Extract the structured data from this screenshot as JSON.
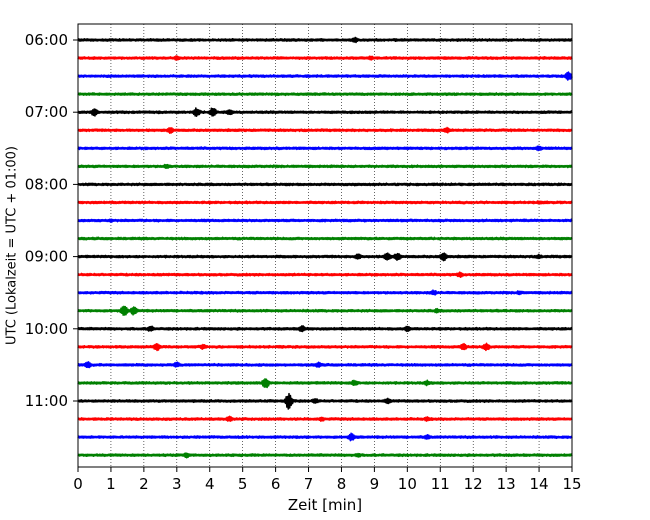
{
  "chart_data": {
    "type": "line",
    "title": "",
    "xlabel": "Zeit  [min]",
    "ylabel": "UTC (Lokalzeit = UTC + 01:00)",
    "xlim": [
      0,
      15
    ],
    "x_ticks": [
      0,
      1,
      2,
      3,
      4,
      5,
      6,
      7,
      8,
      9,
      10,
      11,
      12,
      13,
      14,
      15
    ],
    "x_tick_labels": [
      "0",
      "1",
      "2",
      "3",
      "4",
      "5",
      "6",
      "7",
      "8",
      "9",
      "10",
      "11",
      "12",
      "13",
      "14",
      "15"
    ],
    "y_tick_labels": [
      "06:00",
      "07:00",
      "08:00",
      "09:00",
      "10:00",
      "11:00"
    ],
    "grid": "vertical dotted",
    "trace_colors": [
      "#000000",
      "#ff0000",
      "#0000ff",
      "#008000"
    ],
    "traces": [
      {
        "start": "06:00",
        "color": "#000000",
        "events": [
          {
            "t": 8.4,
            "amp": 0.35
          }
        ]
      },
      {
        "start": "06:15",
        "color": "#ff0000",
        "events": [
          {
            "t": 3.0,
            "amp": 0.25
          },
          {
            "t": 8.9,
            "amp": 0.25
          }
        ]
      },
      {
        "start": "06:30",
        "color": "#0000ff",
        "events": [
          {
            "t": 14.9,
            "amp": 0.5
          }
        ]
      },
      {
        "start": "06:45",
        "color": "#008000",
        "events": []
      },
      {
        "start": "07:00",
        "color": "#000000",
        "events": [
          {
            "t": 0.5,
            "amp": 0.45
          },
          {
            "t": 3.6,
            "amp": 0.5
          },
          {
            "t": 4.1,
            "amp": 0.55
          },
          {
            "t": 4.6,
            "amp": 0.35
          }
        ]
      },
      {
        "start": "07:15",
        "color": "#ff0000",
        "events": [
          {
            "t": 2.8,
            "amp": 0.35
          },
          {
            "t": 11.2,
            "amp": 0.3
          }
        ]
      },
      {
        "start": "07:30",
        "color": "#0000ff",
        "events": [
          {
            "t": 14.0,
            "amp": 0.3
          }
        ]
      },
      {
        "start": "07:45",
        "color": "#008000",
        "events": [
          {
            "t": 2.7,
            "amp": 0.3
          }
        ]
      },
      {
        "start": "08:00",
        "color": "#000000",
        "events": []
      },
      {
        "start": "08:15",
        "color": "#ff0000",
        "events": [
          {
            "t": 14.0,
            "amp": 0.2
          }
        ]
      },
      {
        "start": "08:30",
        "color": "#0000ff",
        "events": [
          {
            "t": 1.0,
            "amp": 0.2
          }
        ]
      },
      {
        "start": "08:45",
        "color": "#008000",
        "events": []
      },
      {
        "start": "09:00",
        "color": "#000000",
        "events": [
          {
            "t": 8.5,
            "amp": 0.35
          },
          {
            "t": 9.4,
            "amp": 0.5
          },
          {
            "t": 9.7,
            "amp": 0.45
          },
          {
            "t": 11.1,
            "amp": 0.5
          },
          {
            "t": 14.0,
            "amp": 0.25
          }
        ]
      },
      {
        "start": "09:15",
        "color": "#ff0000",
        "events": [
          {
            "t": 11.6,
            "amp": 0.3
          }
        ]
      },
      {
        "start": "09:30",
        "color": "#0000ff",
        "events": [
          {
            "t": 10.8,
            "amp": 0.3
          },
          {
            "t": 13.4,
            "amp": 0.25
          }
        ]
      },
      {
        "start": "09:45",
        "color": "#008000",
        "events": [
          {
            "t": 1.4,
            "amp": 0.6
          },
          {
            "t": 1.7,
            "amp": 0.5
          },
          {
            "t": 10.9,
            "amp": 0.25
          }
        ]
      },
      {
        "start": "10:00",
        "color": "#000000",
        "events": [
          {
            "t": 2.2,
            "amp": 0.35
          },
          {
            "t": 6.8,
            "amp": 0.4
          },
          {
            "t": 10.0,
            "amp": 0.3
          }
        ]
      },
      {
        "start": "10:15",
        "color": "#ff0000",
        "events": [
          {
            "t": 2.4,
            "amp": 0.45
          },
          {
            "t": 3.8,
            "amp": 0.3
          },
          {
            "t": 11.7,
            "amp": 0.4
          },
          {
            "t": 12.4,
            "amp": 0.45
          }
        ]
      },
      {
        "start": "10:30",
        "color": "#0000ff",
        "events": [
          {
            "t": 0.3,
            "amp": 0.35
          },
          {
            "t": 3.0,
            "amp": 0.3
          },
          {
            "t": 7.3,
            "amp": 0.3
          }
        ]
      },
      {
        "start": "10:45",
        "color": "#008000",
        "events": [
          {
            "t": 5.7,
            "amp": 0.6
          },
          {
            "t": 8.4,
            "amp": 0.35
          },
          {
            "t": 10.6,
            "amp": 0.3
          }
        ]
      },
      {
        "start": "11:00",
        "color": "#000000",
        "events": [
          {
            "t": 6.4,
            "amp": 0.9
          },
          {
            "t": 7.2,
            "amp": 0.3
          },
          {
            "t": 9.4,
            "amp": 0.3
          }
        ]
      },
      {
        "start": "11:15",
        "color": "#ff0000",
        "events": [
          {
            "t": 4.6,
            "amp": 0.3
          },
          {
            "t": 7.4,
            "amp": 0.25
          },
          {
            "t": 10.6,
            "amp": 0.25
          }
        ]
      },
      {
        "start": "11:30",
        "color": "#0000ff",
        "events": [
          {
            "t": 8.3,
            "amp": 0.45
          },
          {
            "t": 10.6,
            "amp": 0.3
          }
        ]
      },
      {
        "start": "11:45",
        "color": "#008000",
        "events": [
          {
            "t": 3.3,
            "amp": 0.3
          },
          {
            "t": 8.5,
            "amp": 0.25
          }
        ]
      }
    ]
  }
}
